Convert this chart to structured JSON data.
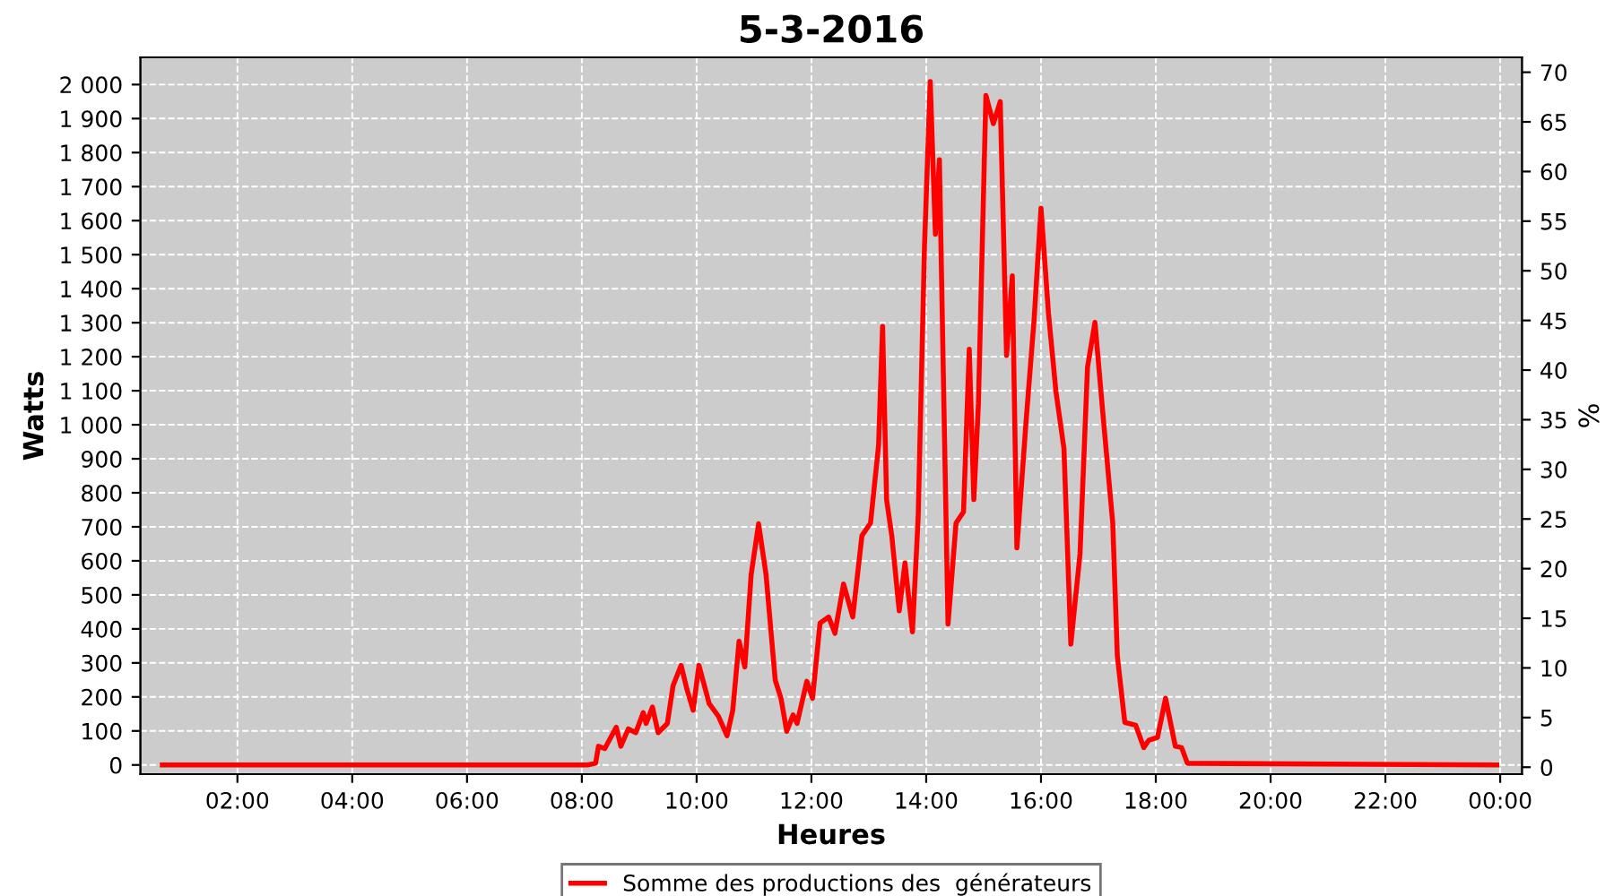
{
  "chart_data": {
    "type": "line",
    "title": "5-3-2016",
    "xlabel": "Heures",
    "ylabel": "Watts",
    "y2label": "%",
    "legend": "bottom",
    "grid": true,
    "line_style": "solid",
    "marker": "none",
    "xlim": [
      0.31,
      24.38
    ],
    "ylim": [
      -27,
      2080
    ],
    "y2lim": [
      -0.7,
      71.5
    ],
    "xticks": [
      {
        "value": 2,
        "label": "02:00"
      },
      {
        "value": 4,
        "label": "04:00"
      },
      {
        "value": 6,
        "label": "06:00"
      },
      {
        "value": 8,
        "label": "08:00"
      },
      {
        "value": 10,
        "label": "10:00"
      },
      {
        "value": 12,
        "label": "12:00"
      },
      {
        "value": 14,
        "label": "14:00"
      },
      {
        "value": 16,
        "label": "16:00"
      },
      {
        "value": 18,
        "label": "18:00"
      },
      {
        "value": 20,
        "label": "20:00"
      },
      {
        "value": 22,
        "label": "22:00"
      },
      {
        "value": 24,
        "label": "00:00"
      }
    ],
    "yticks": [
      0,
      100,
      200,
      300,
      400,
      500,
      600,
      700,
      800,
      900,
      {
        "value": 1000,
        "label": "1 000"
      },
      {
        "value": 1100,
        "label": "1 100"
      },
      {
        "value": 1200,
        "label": "1 200"
      },
      {
        "value": 1300,
        "label": "1 300"
      },
      {
        "value": 1400,
        "label": "1 400"
      },
      {
        "value": 1500,
        "label": "1 500"
      },
      {
        "value": 1600,
        "label": "1 600"
      },
      {
        "value": 1700,
        "label": "1 700"
      },
      {
        "value": 1800,
        "label": "1 800"
      },
      {
        "value": 1900,
        "label": "1 900"
      },
      {
        "value": 2000,
        "label": "2 000"
      }
    ],
    "y2ticks": [
      0,
      5,
      10,
      15,
      20,
      25,
      30,
      35,
      40,
      45,
      50,
      55,
      60,
      65,
      70
    ],
    "series": [
      {
        "name": "Somme des productions des  générateurs",
        "color": "#ff0000",
        "x": [
          0.69,
          8.1,
          8.24,
          8.29,
          8.4,
          8.6,
          8.68,
          8.81,
          8.94,
          9.07,
          9.12,
          9.23,
          9.33,
          9.49,
          9.59,
          9.73,
          9.83,
          9.94,
          10.04,
          10.22,
          10.38,
          10.53,
          10.63,
          10.74,
          10.84,
          10.95,
          11.08,
          11.21,
          11.37,
          11.47,
          11.57,
          11.68,
          11.75,
          11.92,
          12.02,
          12.15,
          12.3,
          12.41,
          12.56,
          12.72,
          12.88,
          13.03,
          13.17,
          13.24,
          13.31,
          13.4,
          13.53,
          13.63,
          13.76,
          13.86,
          13.97,
          14.07,
          14.16,
          14.23,
          14.31,
          14.38,
          14.52,
          14.65,
          14.75,
          14.83,
          14.91,
          15.04,
          15.17,
          15.29,
          15.4,
          15.5,
          15.58,
          15.74,
          15.88,
          16.0,
          16.13,
          16.26,
          16.4,
          16.52,
          16.68,
          16.81,
          16.94,
          17.09,
          17.25,
          17.33,
          17.46,
          17.65,
          17.79,
          17.88,
          18.03,
          18.17,
          18.34,
          18.45,
          18.55,
          23.94
        ],
        "values": [
          0,
          0,
          5,
          55,
          48,
          111,
          55,
          106,
          95,
          154,
          122,
          170,
          95,
          122,
          233,
          293,
          223,
          161,
          293,
          180,
          143,
          86,
          161,
          364,
          288,
          559,
          709,
          559,
          249,
          196,
          99,
          147,
          122,
          246,
          196,
          417,
          435,
          387,
          532,
          435,
          674,
          711,
          939,
          1289,
          780,
          674,
          453,
          594,
          391,
          727,
          1523,
          2009,
          1560,
          1779,
          1045,
          414,
          711,
          744,
          1222,
          780,
          1063,
          1968,
          1885,
          1950,
          1204,
          1438,
          638,
          1010,
          1310,
          1637,
          1328,
          1098,
          930,
          355,
          621,
          1169,
          1301,
          1010,
          711,
          320,
          125,
          117,
          51,
          73,
          81,
          196,
          55,
          51,
          5,
          0
        ]
      }
    ]
  }
}
